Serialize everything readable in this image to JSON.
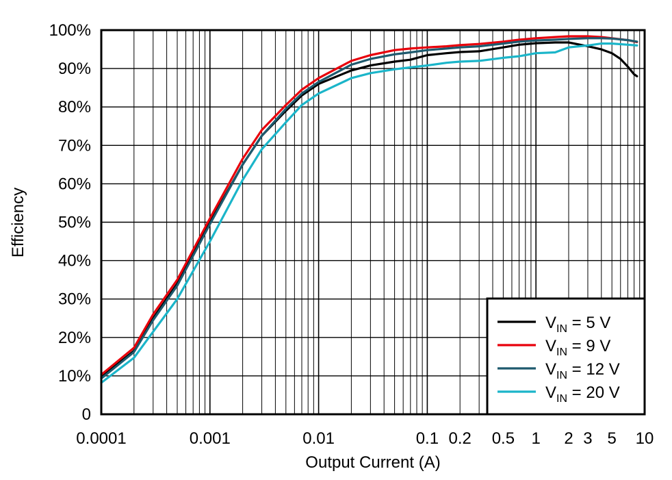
{
  "chart_data": {
    "type": "line",
    "title": "",
    "xlabel": "Output Current (A)",
    "ylabel": "Efficiency",
    "x_scale": "log",
    "xlim": [
      0.0001,
      10
    ],
    "ylim": [
      0,
      100
    ],
    "grid": true,
    "legend_position": "bottom-right",
    "x_tick_labels": [
      {
        "value": 0.0001,
        "label": "0.0001"
      },
      {
        "value": 0.001,
        "label": "0.001"
      },
      {
        "value": 0.01,
        "label": "0.01"
      },
      {
        "value": 0.1,
        "label": "0.1"
      },
      {
        "value": 0.2,
        "label": "0.2"
      },
      {
        "value": 0.5,
        "label": "0.5"
      },
      {
        "value": 1,
        "label": "1"
      },
      {
        "value": 2,
        "label": "2"
      },
      {
        "value": 3,
        "label": "3"
      },
      {
        "value": 5,
        "label": "5"
      },
      {
        "value": 10,
        "label": "10"
      }
    ],
    "y_tick_labels": [
      {
        "value": 0,
        "label": "0"
      },
      {
        "value": 10,
        "label": "10%"
      },
      {
        "value": 20,
        "label": "20%"
      },
      {
        "value": 30,
        "label": "30%"
      },
      {
        "value": 40,
        "label": "40%"
      },
      {
        "value": 50,
        "label": "50%"
      },
      {
        "value": 60,
        "label": "60%"
      },
      {
        "value": 70,
        "label": "70%"
      },
      {
        "value": 80,
        "label": "80%"
      },
      {
        "value": 90,
        "label": "90%"
      },
      {
        "value": 100,
        "label": "100%"
      }
    ],
    "series": [
      {
        "legend_main": "V",
        "legend_sub": "IN",
        "legend_rest": " = 5 V",
        "color": "#000000",
        "points": [
          [
            0.0001,
            9.7
          ],
          [
            0.0002,
            16.5
          ],
          [
            0.0003,
            25
          ],
          [
            0.0005,
            34
          ],
          [
            0.001,
            50
          ],
          [
            0.002,
            65
          ],
          [
            0.003,
            72.5
          ],
          [
            0.005,
            79
          ],
          [
            0.007,
            83
          ],
          [
            0.01,
            86
          ],
          [
            0.02,
            89.5
          ],
          [
            0.03,
            90.8
          ],
          [
            0.05,
            91.8
          ],
          [
            0.07,
            92.3
          ],
          [
            0.1,
            93.5
          ],
          [
            0.15,
            94
          ],
          [
            0.2,
            94.3
          ],
          [
            0.3,
            94.5
          ],
          [
            0.5,
            95.5
          ],
          [
            0.7,
            96.2
          ],
          [
            1,
            96.6
          ],
          [
            1.5,
            96.8
          ],
          [
            2,
            96.8
          ],
          [
            3,
            95.8
          ],
          [
            4,
            95
          ],
          [
            5,
            94
          ],
          [
            6,
            92.5
          ],
          [
            7,
            90.5
          ],
          [
            8,
            88.5
          ],
          [
            8.5,
            88
          ]
        ]
      },
      {
        "legend_main": "V",
        "legend_sub": "IN",
        "legend_rest": " = 9 V",
        "color": "#e8000b",
        "points": [
          [
            0.0001,
            10.3
          ],
          [
            0.0002,
            17.3
          ],
          [
            0.0003,
            26
          ],
          [
            0.0005,
            35
          ],
          [
            0.001,
            51
          ],
          [
            0.002,
            66.5
          ],
          [
            0.003,
            74
          ],
          [
            0.005,
            80.5
          ],
          [
            0.007,
            84.5
          ],
          [
            0.01,
            87.5
          ],
          [
            0.02,
            92
          ],
          [
            0.03,
            93.5
          ],
          [
            0.05,
            94.8
          ],
          [
            0.07,
            95.2
          ],
          [
            0.1,
            95.5
          ],
          [
            0.15,
            95.8
          ],
          [
            0.2,
            96.1
          ],
          [
            0.3,
            96.4
          ],
          [
            0.5,
            97
          ],
          [
            0.7,
            97.5
          ],
          [
            1,
            97.9
          ],
          [
            1.5,
            98.2
          ],
          [
            2,
            98.4
          ],
          [
            3,
            98.4
          ],
          [
            4,
            98.2
          ],
          [
            5,
            97.9
          ],
          [
            7,
            97.4
          ],
          [
            8.5,
            96.9
          ]
        ]
      },
      {
        "legend_main": "V",
        "legend_sub": "IN",
        "legend_rest": " = 12 V",
        "color": "#1e5a6e",
        "points": [
          [
            0.0001,
            9.3
          ],
          [
            0.0002,
            16.2
          ],
          [
            0.0003,
            24.5
          ],
          [
            0.0005,
            33.5
          ],
          [
            0.001,
            49.5
          ],
          [
            0.002,
            65
          ],
          [
            0.003,
            72.5
          ],
          [
            0.005,
            79.5
          ],
          [
            0.007,
            83.5
          ],
          [
            0.01,
            86.5
          ],
          [
            0.02,
            91
          ],
          [
            0.03,
            92.5
          ],
          [
            0.05,
            93.7
          ],
          [
            0.07,
            94.2
          ],
          [
            0.1,
            94.8
          ],
          [
            0.15,
            95.2
          ],
          [
            0.2,
            95.5
          ],
          [
            0.3,
            95.8
          ],
          [
            0.5,
            96.5
          ],
          [
            0.7,
            97
          ],
          [
            1,
            97.3
          ],
          [
            1.5,
            97.5
          ],
          [
            2,
            97.7
          ],
          [
            3,
            97.9
          ],
          [
            4,
            97.9
          ],
          [
            5,
            97.8
          ],
          [
            7,
            97.4
          ],
          [
            8.5,
            97
          ]
        ]
      },
      {
        "legend_main": "V",
        "legend_sub": "IN",
        "legend_rest": " = 20 V",
        "color": "#1bb5c9",
        "points": [
          [
            0.0001,
            8.2
          ],
          [
            0.0002,
            14.7
          ],
          [
            0.0003,
            21.5
          ],
          [
            0.0005,
            30
          ],
          [
            0.001,
            45
          ],
          [
            0.002,
            61
          ],
          [
            0.003,
            69
          ],
          [
            0.005,
            76
          ],
          [
            0.007,
            80.5
          ],
          [
            0.01,
            83.5
          ],
          [
            0.02,
            87.5
          ],
          [
            0.03,
            88.8
          ],
          [
            0.05,
            89.8
          ],
          [
            0.07,
            90.3
          ],
          [
            0.1,
            90.8
          ],
          [
            0.15,
            91.5
          ],
          [
            0.2,
            91.8
          ],
          [
            0.3,
            92
          ],
          [
            0.5,
            92.8
          ],
          [
            0.7,
            93.2
          ],
          [
            1,
            94
          ],
          [
            1.5,
            94.2
          ],
          [
            2,
            95.5
          ],
          [
            3,
            96
          ],
          [
            4,
            96.5
          ],
          [
            5,
            96.5
          ],
          [
            7,
            96.2
          ],
          [
            8.5,
            96
          ]
        ]
      }
    ]
  }
}
